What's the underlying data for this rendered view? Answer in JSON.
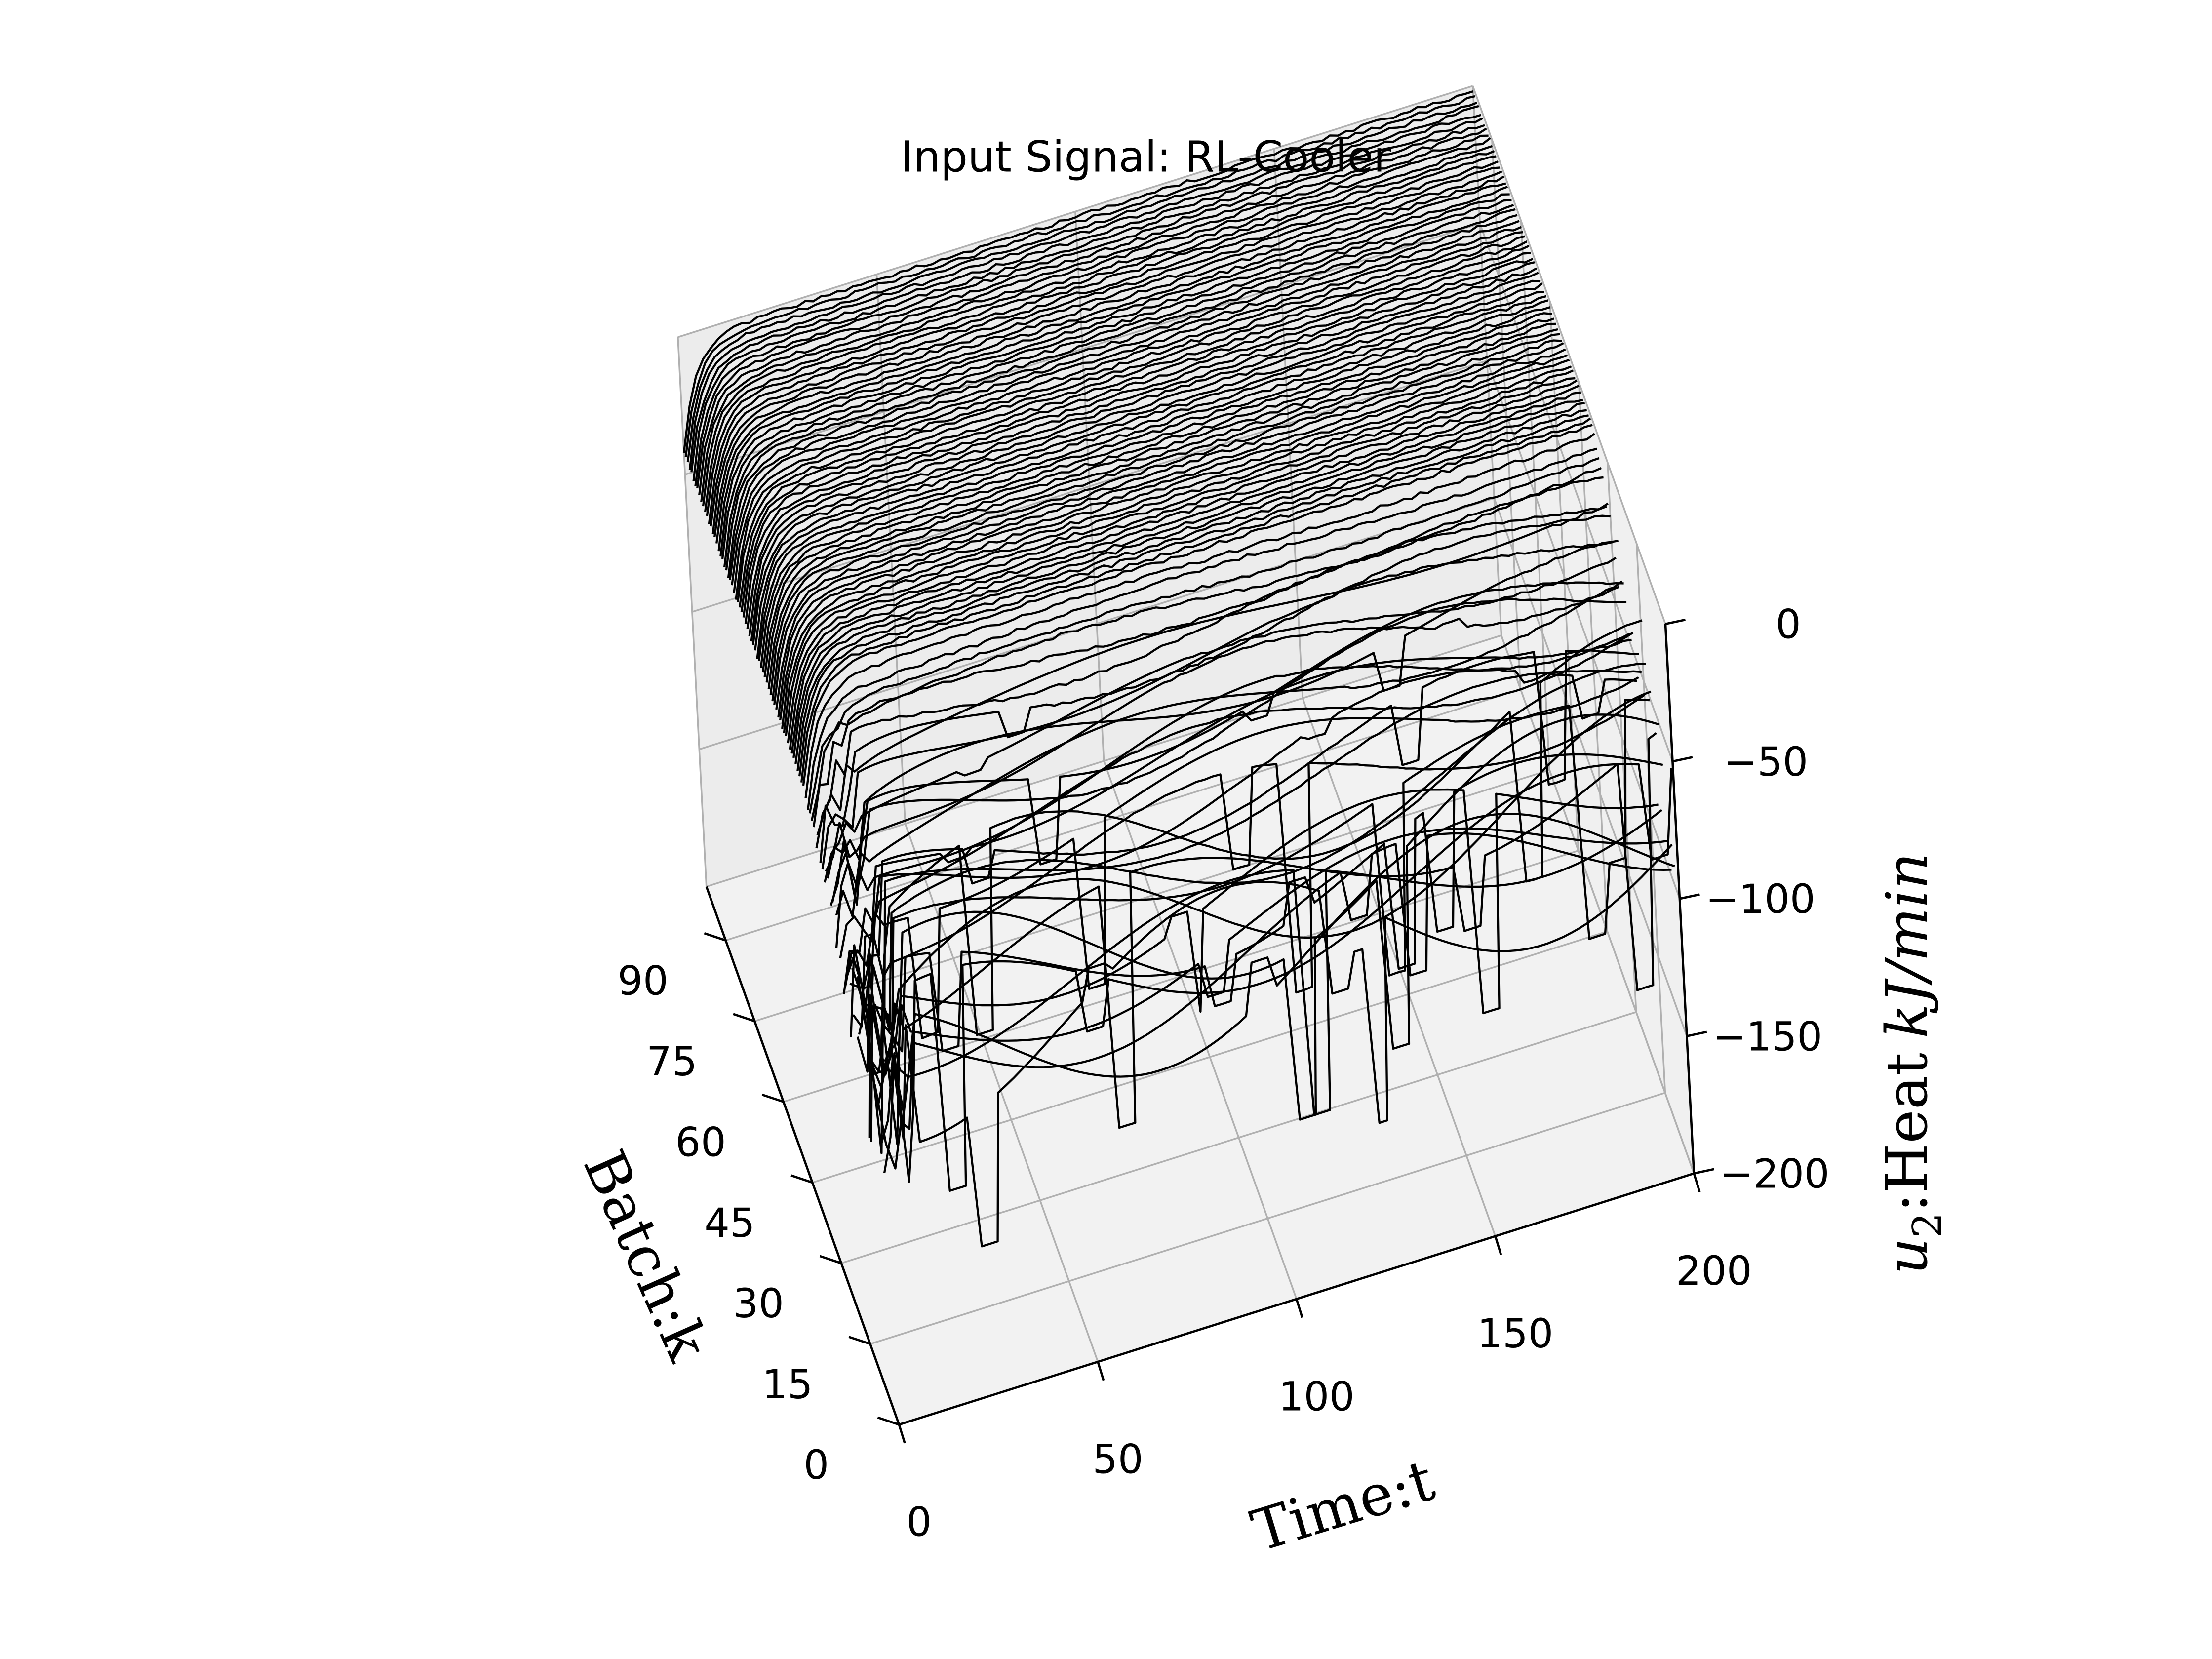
{
  "chart_data": {
    "type": "line",
    "projection": "3d-waterfall",
    "title": "Input Signal: RL-Cooler",
    "xlabel": "Time:t",
    "ylabel": "Batch:k",
    "zlabel_main": "u",
    "zlabel_sub": "2",
    "zlabel_rest": ":Heat",
    "zlabel_unit": "kJ/min",
    "xlim": [
      0,
      200
    ],
    "ylim": [
      0,
      100
    ],
    "zlim": [
      -200,
      0
    ],
    "xticks": [
      0,
      50,
      100,
      150,
      200
    ],
    "xtick_labels": [
      "0",
      "50",
      "100",
      "150",
      "200"
    ],
    "yticks": [
      0,
      15,
      30,
      45,
      60,
      75,
      90
    ],
    "ytick_labels": [
      "0",
      "15",
      "30",
      "45",
      "60",
      "75",
      "90"
    ],
    "zticks": [
      0,
      -50,
      -100,
      -150,
      -200
    ],
    "ztick_labels": [
      "0",
      "−50",
      "−100",
      "−150",
      "−200"
    ],
    "grid": true,
    "line_color": "#000000",
    "pane_color": "#f2f2f2",
    "grid_color": "#b0b0b0",
    "batches": {
      "first": 1,
      "count": 100,
      "description_values": {
        "early_batch_heat_range": [
          -180,
          -20
        ],
        "converged_batch_heat_level": -2
      }
    },
    "series_profiles": {
      "converged": [
        {
          "t": 0,
          "u": -42
        },
        {
          "t": 5,
          "u": -25
        },
        {
          "t": 12,
          "u": -8
        },
        {
          "t": 25,
          "u": -3
        },
        {
          "t": 200,
          "u": -2
        }
      ],
      "early_low": [
        {
          "t": 0,
          "u": -160
        },
        {
          "t": 4,
          "u": -40
        },
        {
          "t": 10,
          "u": -110
        },
        {
          "t": 22,
          "u": -60
        },
        {
          "t": 45,
          "u": -90
        },
        {
          "t": 80,
          "u": -70
        },
        {
          "t": 110,
          "u": -60
        },
        {
          "t": 150,
          "u": -55
        },
        {
          "t": 175,
          "u": -20
        },
        {
          "t": 200,
          "u": -35
        }
      ]
    }
  }
}
